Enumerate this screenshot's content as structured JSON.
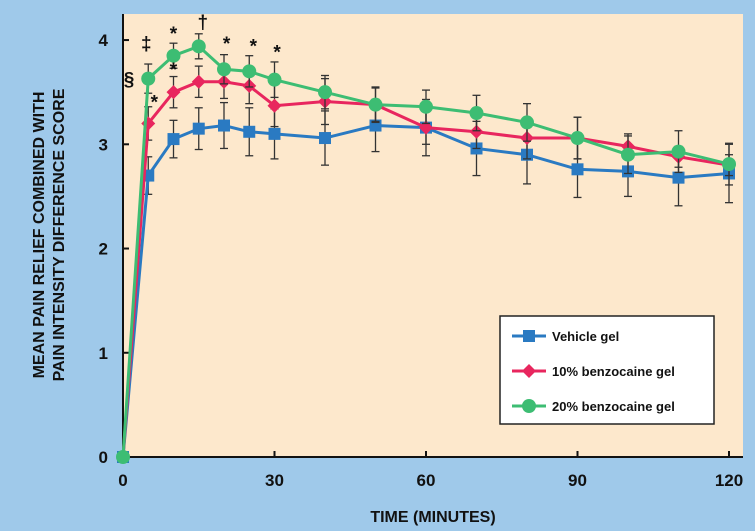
{
  "colors": {
    "page_background": "#9fc9ea",
    "plot_background": "#fde8cc",
    "vehicle": "#2a7ac2",
    "benzocaine_10": "#e8265e",
    "benzocaine_20": "#3dbd73",
    "error_bar": "#333333"
  },
  "chart_data": {
    "type": "line",
    "xlabel": "TIME (MINUTES)",
    "ylabel_line1": "MEAN PAIN RELIEF COMBINED WITH",
    "ylabel_line2": "PAIN INTENSITY DIFFERENCE SCORE",
    "xlim": [
      0,
      120
    ],
    "ylim": [
      0,
      4.25
    ],
    "x_ticks": [
      0,
      30,
      60,
      90,
      120
    ],
    "y_ticks": [
      0,
      1,
      2,
      3,
      4
    ],
    "x_tick_labels": [
      "0",
      "30",
      "60",
      "90",
      "120"
    ],
    "y_tick_labels": [
      "0",
      "1",
      "2",
      "3",
      "4"
    ],
    "grid": false,
    "legend_position": "bottom-right",
    "series": [
      {
        "name": "Vehicle gel",
        "marker": "square",
        "x": [
          0,
          5,
          10,
          15,
          20,
          25,
          30,
          40,
          50,
          60,
          70,
          80,
          90,
          100,
          110,
          120
        ],
        "y": [
          0,
          2.7,
          3.05,
          3.15,
          3.18,
          3.12,
          3.1,
          3.06,
          3.18,
          3.16,
          2.96,
          2.9,
          2.76,
          2.74,
          2.68,
          2.72
        ],
        "err": [
          0,
          0.18,
          0.18,
          0.2,
          0.22,
          0.23,
          0.24,
          0.26,
          0.25,
          0.27,
          0.26,
          0.28,
          0.27,
          0.24,
          0.27,
          0.28
        ]
      },
      {
        "name": "10% benzocaine gel",
        "marker": "diamond",
        "x": [
          0,
          5,
          10,
          15,
          20,
          25,
          30,
          40,
          50,
          60,
          70,
          80,
          90,
          100,
          110,
          120
        ],
        "y": [
          0,
          3.2,
          3.5,
          3.6,
          3.6,
          3.56,
          3.37,
          3.41,
          3.38,
          3.16,
          3.12,
          3.06,
          3.06,
          2.98,
          2.88,
          2.8
        ],
        "err": [
          0,
          0.16,
          0.15,
          0.15,
          0.16,
          0.17,
          0.2,
          0.22,
          0.16,
          0.16,
          0.16,
          0.2,
          0.2,
          0.12,
          0.1,
          0.1
        ]
      },
      {
        "name": "20% benzocaine gel",
        "marker": "circle",
        "x": [
          0,
          5,
          10,
          15,
          20,
          25,
          30,
          40,
          50,
          60,
          70,
          80,
          90,
          100,
          110,
          120
        ],
        "y": [
          0,
          3.63,
          3.85,
          3.94,
          3.72,
          3.7,
          3.62,
          3.5,
          3.38,
          3.36,
          3.3,
          3.21,
          3.06,
          2.9,
          2.93,
          2.81
        ],
        "err": [
          0,
          0.14,
          0.12,
          0.12,
          0.14,
          0.15,
          0.17,
          0.16,
          0.17,
          0.16,
          0.17,
          0.18,
          0.2,
          0.18,
          0.2,
          0.2
        ]
      }
    ],
    "annotations": [
      {
        "text": "§",
        "x": 1.2,
        "y": 3.63
      },
      {
        "text": "*",
        "x": 6.2,
        "y": 3.41
      },
      {
        "text": "‡",
        "x": 4.6,
        "y": 3.97
      },
      {
        "text": "*",
        "x": 10.0,
        "y": 4.07
      },
      {
        "text": "*",
        "x": 10.0,
        "y": 3.72
      },
      {
        "text": "†",
        "x": 15.8,
        "y": 4.18
      },
      {
        "text": "*",
        "x": 20.5,
        "y": 3.97
      },
      {
        "text": "*",
        "x": 25.8,
        "y": 3.95
      },
      {
        "text": "*",
        "x": 30.5,
        "y": 3.89
      }
    ]
  }
}
